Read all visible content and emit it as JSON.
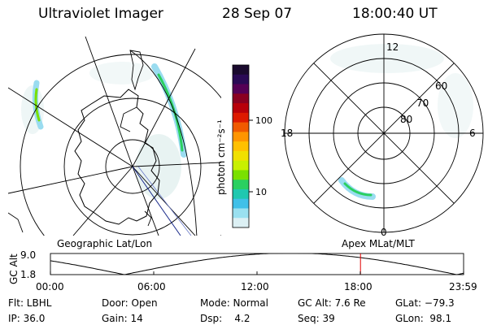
{
  "header": {
    "instrument": "Ultraviolet Imager",
    "date": "28 Sep 07",
    "time": "18:00:40 UT"
  },
  "colorbar": {
    "label": "photon cm⁻²s⁻¹",
    "ticks": [
      "100",
      "10"
    ],
    "colors": [
      "#1a0a2e",
      "#2a0a55",
      "#550055",
      "#8a0020",
      "#b8000a",
      "#dd1a00",
      "#f05a00",
      "#ff9500",
      "#ffc000",
      "#f0e000",
      "#c8f000",
      "#7ae000",
      "#2ad060",
      "#20c8b0",
      "#40c0e8",
      "#9ae0f0",
      "#dcf0f4"
    ]
  },
  "geographic_map": {
    "caption": "Geographic Lat/Lon"
  },
  "polar_map": {
    "caption": "Apex MLat/MLT",
    "mlt_labels": {
      "top": "12",
      "left": "18",
      "right": "6",
      "bottom": "0"
    },
    "lat_labels": [
      "60",
      "70",
      "80"
    ]
  },
  "altitude_plot": {
    "ylabel": "GC Alt",
    "yticks": [
      "9.0",
      "1.8"
    ],
    "xticks": [
      "00:00",
      "06:00",
      "12:00",
      "18:00",
      "23:59"
    ],
    "marker_time_hours": 18.01,
    "marker_color": "#e00000"
  },
  "info": {
    "filter": "Flt: LBHL",
    "ip": "IP: 36.0",
    "door": "Door: Open",
    "gain": "Gain: 14",
    "mode": "Mode: Normal",
    "dsp": "Dsp:    4.2",
    "gc_alt": "GC Alt: 7.6 Re",
    "seq": "Seq: 39",
    "glat": "GLat: −79.3",
    "glon": "GLon:  98.1"
  }
}
